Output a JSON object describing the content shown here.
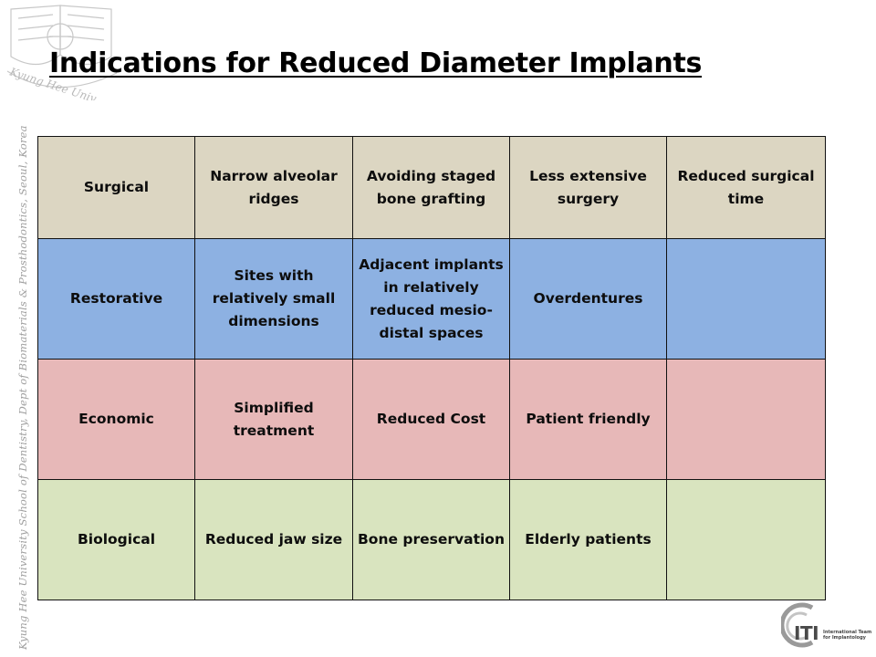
{
  "slide": {
    "title": "Indications for Reduced Diameter Implants",
    "side_text": "Kyung Hee University School of Dentistry, Dept of Biomaterials & Prosthodontics, Seoul, Korea",
    "seal_text": "Kyung Hee University"
  },
  "table": {
    "rows": [
      {
        "cells": [
          "Surgical",
          "Narrow alveolar ridges",
          "Avoiding staged bone grafting",
          "Less extensive surgery",
          "Reduced surgical time"
        ],
        "color": "#dcd6c2"
      },
      {
        "cells": [
          "Restorative",
          "Sites with relatively small dimensions",
          "Adjacent implants in relatively reduced mesio-distal spaces",
          "Overdentures",
          ""
        ],
        "color": "#8db1e2"
      },
      {
        "cells": [
          "Economic",
          "Simplified treatment",
          "Reduced Cost",
          "Patient friendly",
          ""
        ],
        "color": "#e7b8b8"
      },
      {
        "cells": [
          "Biological",
          "Reduced jaw size",
          "Bone preservation",
          "Elderly patients",
          ""
        ],
        "color": "#d9e4bf"
      }
    ]
  },
  "logo": {
    "text": "ITI",
    "subtitle": "International Team for Implantology",
    "icon": "iti-logo-icon"
  }
}
